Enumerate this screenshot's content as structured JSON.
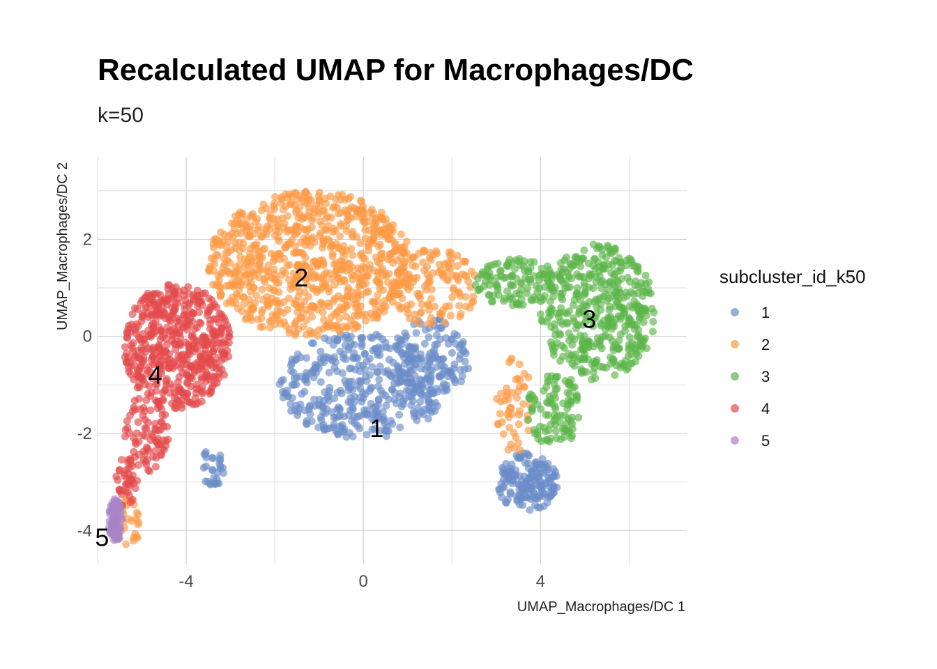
{
  "chart_data": {
    "type": "scatter",
    "title": "Recalculated UMAP for Macrophages/DC",
    "subtitle": "k=50",
    "xlabel": "UMAP_Macrophages/DC 1",
    "ylabel": "UMAP_Macrophages/DC 2",
    "xlim": [
      -6,
      7.3
    ],
    "ylim": [
      -4.7,
      3.7
    ],
    "x_ticks": [
      -4,
      0,
      4
    ],
    "y_ticks": [
      2,
      0,
      -2,
      -4
    ],
    "x_tick_labels": [
      "-4",
      "0",
      "4"
    ],
    "y_tick_labels": [
      "2",
      "0",
      "-2",
      "-4"
    ],
    "grid": true,
    "legend": {
      "title": "subcluster_id_k50",
      "position": "right",
      "entries": [
        "1",
        "2",
        "3",
        "4",
        "5"
      ]
    },
    "series": [
      {
        "name": "1",
        "color": "#6b8ec7",
        "label_pos": [
          0.3,
          -1.9
        ],
        "regions": [
          {
            "cx": 0.0,
            "cy": -1.0,
            "rx": 1.9,
            "ry": 1.1,
            "n": 380
          },
          {
            "cx": 1.5,
            "cy": -0.5,
            "rx": 0.9,
            "ry": 0.9,
            "n": 140
          },
          {
            "cx": 3.7,
            "cy": -3.0,
            "rx": 0.7,
            "ry": 0.6,
            "n": 170
          },
          {
            "cx": -3.4,
            "cy": -2.7,
            "rx": 0.3,
            "ry": 0.4,
            "n": 30
          }
        ]
      },
      {
        "name": "2",
        "color": "#fc9a45",
        "label_pos": [
          -1.4,
          1.2
        ],
        "regions": [
          {
            "cx": -1.2,
            "cy": 1.5,
            "rx": 2.3,
            "ry": 1.5,
            "n": 820
          },
          {
            "cx": 1.6,
            "cy": 1.0,
            "rx": 1.0,
            "ry": 0.8,
            "n": 130
          },
          {
            "cx": 3.4,
            "cy": -1.4,
            "rx": 0.4,
            "ry": 1.0,
            "n": 50
          },
          {
            "cx": -5.3,
            "cy": -3.8,
            "rx": 0.3,
            "ry": 0.5,
            "n": 25
          }
        ]
      },
      {
        "name": "3",
        "color": "#5cb54a",
        "label_pos": [
          5.1,
          0.35
        ],
        "regions": [
          {
            "cx": 5.3,
            "cy": 0.5,
            "rx": 1.3,
            "ry": 1.4,
            "n": 420
          },
          {
            "cx": 3.5,
            "cy": 1.1,
            "rx": 1.0,
            "ry": 0.5,
            "n": 120
          },
          {
            "cx": 4.3,
            "cy": -1.5,
            "rx": 0.6,
            "ry": 0.8,
            "n": 100
          }
        ]
      },
      {
        "name": "4",
        "color": "#e34a4b",
        "label_pos": [
          -4.7,
          -0.8
        ],
        "regions": [
          {
            "cx": -4.2,
            "cy": -0.2,
            "rx": 1.2,
            "ry": 1.3,
            "n": 520
          },
          {
            "cx": -4.9,
            "cy": -2.0,
            "rx": 0.5,
            "ry": 0.8,
            "n": 80
          },
          {
            "cx": -5.4,
            "cy": -3.0,
            "rx": 0.3,
            "ry": 0.5,
            "n": 40
          }
        ]
      },
      {
        "name": "5",
        "color": "#a784c6",
        "label_pos": [
          -5.9,
          -4.15
        ],
        "regions": [
          {
            "cx": -5.6,
            "cy": -3.8,
            "rx": 0.15,
            "ry": 0.45,
            "n": 70
          }
        ]
      }
    ]
  }
}
